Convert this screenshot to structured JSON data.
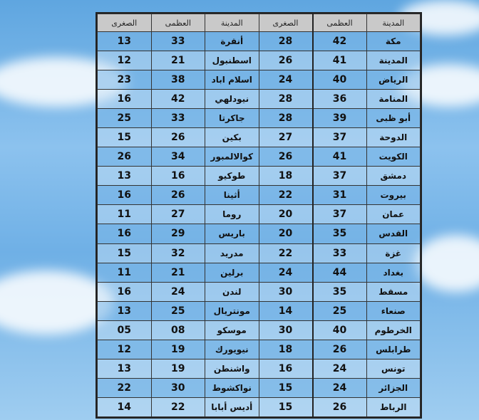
{
  "headers": {
    "city": "المدينة",
    "max": "العظمى",
    "min": "الصغرى"
  },
  "rows": [
    {
      "r_city": "مكة",
      "r_max": "42",
      "r_min": "28",
      "l_city": "أنقرة",
      "l_max": "33",
      "l_min": "13"
    },
    {
      "r_city": "المدينة",
      "r_max": "41",
      "r_min": "26",
      "l_city": "اسطنبول",
      "l_max": "21",
      "l_min": "12"
    },
    {
      "r_city": "الرياض",
      "r_max": "40",
      "r_min": "24",
      "l_city": "اسلام اباد",
      "l_max": "38",
      "l_min": "23"
    },
    {
      "r_city": "المنامة",
      "r_max": "36",
      "r_min": "28",
      "l_city": "نيودلهي",
      "l_max": "42",
      "l_min": "16"
    },
    {
      "r_city": "أبو ظبى",
      "r_max": "39",
      "r_min": "28",
      "l_city": "جاكرتا",
      "l_max": "33",
      "l_min": "25"
    },
    {
      "r_city": "الدوحة",
      "r_max": "37",
      "r_min": "27",
      "l_city": "بكين",
      "l_max": "26",
      "l_min": "15"
    },
    {
      "r_city": "الكويت",
      "r_max": "41",
      "r_min": "26",
      "l_city": "كوالالمبور",
      "l_max": "34",
      "l_min": "26"
    },
    {
      "r_city": "دمشق",
      "r_max": "37",
      "r_min": "18",
      "l_city": "طوكيو",
      "l_max": "16",
      "l_min": "13"
    },
    {
      "r_city": "بيروت",
      "r_max": "31",
      "r_min": "22",
      "l_city": "أثينا",
      "l_max": "26",
      "l_min": "16"
    },
    {
      "r_city": "عمان",
      "r_max": "37",
      "r_min": "20",
      "l_city": "روما",
      "l_max": "27",
      "l_min": "11"
    },
    {
      "r_city": "القدس",
      "r_max": "35",
      "r_min": "20",
      "l_city": "باريس",
      "l_max": "29",
      "l_min": "16"
    },
    {
      "r_city": "غزة",
      "r_max": "33",
      "r_min": "22",
      "l_city": "مدريد",
      "l_max": "32",
      "l_min": "15"
    },
    {
      "r_city": "بغداد",
      "r_max": "44",
      "r_min": "24",
      "l_city": "برلين",
      "l_max": "21",
      "l_min": "11"
    },
    {
      "r_city": "مسقط",
      "r_max": "35",
      "r_min": "30",
      "l_city": "لندن",
      "l_max": "24",
      "l_min": "16"
    },
    {
      "r_city": "صنعاء",
      "r_max": "25",
      "r_min": "14",
      "l_city": "مونتريال",
      "l_max": "25",
      "l_min": "13"
    },
    {
      "r_city": "الخرطوم",
      "r_max": "40",
      "r_min": "30",
      "l_city": "موسكو",
      "l_max": "08",
      "l_min": "05"
    },
    {
      "r_city": "طرابلس",
      "r_max": "26",
      "r_min": "18",
      "l_city": "نيويورك",
      "l_max": "19",
      "l_min": "12"
    },
    {
      "r_city": "تونس",
      "r_max": "24",
      "r_min": "16",
      "l_city": "واشنطن",
      "l_max": "19",
      "l_min": "13"
    },
    {
      "r_city": "الجزائر",
      "r_max": "24",
      "r_min": "15",
      "l_city": "نواكشوط",
      "l_max": "30",
      "l_min": "22"
    },
    {
      "r_city": "الرباط",
      "r_max": "26",
      "r_min": "15",
      "l_city": "أديس أبابا",
      "l_max": "22",
      "l_min": "14"
    }
  ]
}
